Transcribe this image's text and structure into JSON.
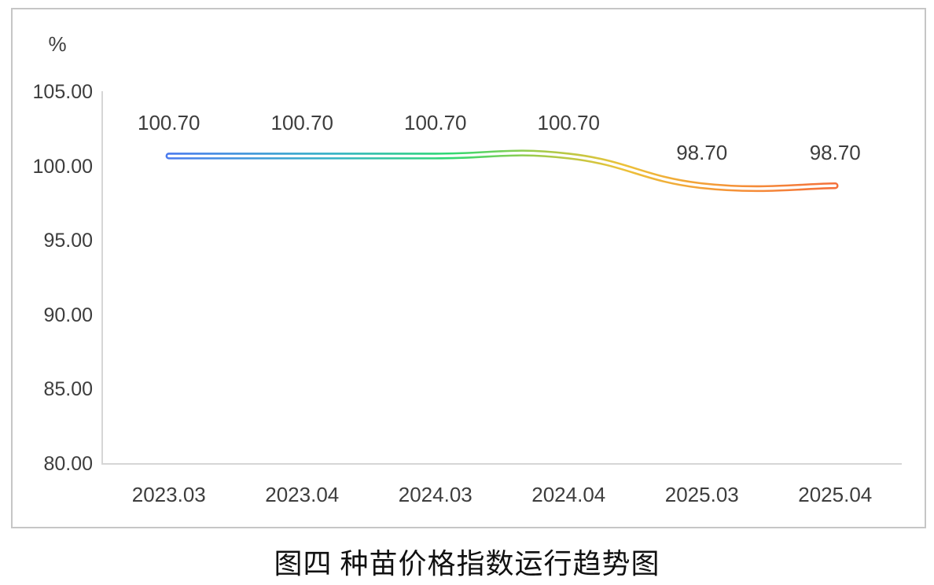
{
  "title": {
    "text": "图四 种苗价格指数运行趋势图"
  },
  "chart_data": {
    "type": "line",
    "title": "图四 种苗价格指数运行趋势图",
    "unit_label": "%",
    "categories": [
      "2023.03",
      "2023.04",
      "2024.03",
      "2024.04",
      "2025.03",
      "2025.04"
    ],
    "values": [
      100.7,
      100.7,
      100.7,
      100.7,
      98.7,
      98.7
    ],
    "point_labels": [
      "100.70",
      "100.70",
      "100.70",
      "100.70",
      "98.70",
      "98.70"
    ],
    "ylim": [
      80,
      105
    ],
    "yticks": [
      {
        "value": 105,
        "label": "105.00"
      },
      {
        "value": 100,
        "label": "100.00"
      },
      {
        "value": 95,
        "label": "95.00"
      },
      {
        "value": 90,
        "label": "90.00"
      },
      {
        "value": 85,
        "label": "85.00"
      },
      {
        "value": 80,
        "label": "80.00"
      }
    ],
    "grid": false,
    "legend": false,
    "smooth": true,
    "line_style": {
      "outlined_hollow": true,
      "outer_width": 8.5,
      "inner_white_width": 3.4,
      "gradient_stops": [
        {
          "offset": 0.0,
          "color": "#4a7bee"
        },
        {
          "offset": 0.25,
          "color": "#33b3c4"
        },
        {
          "offset": 0.42,
          "color": "#2ed973"
        },
        {
          "offset": 0.55,
          "color": "#9ecb4b"
        },
        {
          "offset": 0.68,
          "color": "#ecc239"
        },
        {
          "offset": 0.85,
          "color": "#f59238"
        },
        {
          "offset": 1.0,
          "color": "#f4703b"
        }
      ]
    },
    "colors": {
      "axis_line": "#d6d6d6",
      "text": "#3d3d3d",
      "frame_border": "#c6c6c6",
      "background": "#ffffff"
    }
  }
}
